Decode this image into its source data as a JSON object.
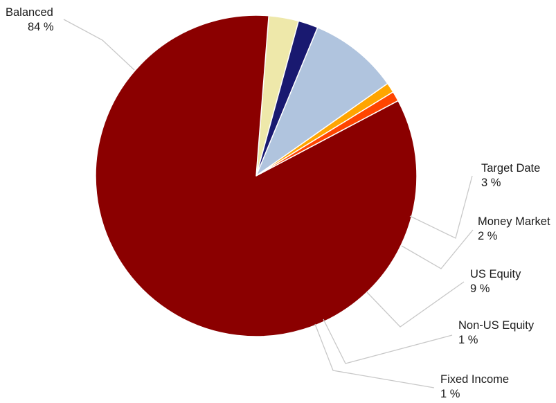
{
  "chart_data": {
    "type": "pie",
    "title": "",
    "start_angle_deg": 85.5,
    "direction": "clockwise",
    "slices": [
      {
        "name": "Target Date",
        "value": 3,
        "label": "Target Date",
        "value_label": "3 %",
        "color": "#EEE8AA"
      },
      {
        "name": "Money Market",
        "value": 2,
        "label": "Money Market",
        "value_label": "2 %",
        "color": "#191970"
      },
      {
        "name": "US Equity",
        "value": 9,
        "label": "US Equity",
        "value_label": "9 %",
        "color": "#B0C4DE"
      },
      {
        "name": "Non-US Equity",
        "value": 1,
        "label": "Non-US Equity",
        "value_label": "1 %",
        "color": "#FFA500"
      },
      {
        "name": "Fixed Income",
        "value": 1,
        "label": "Fixed Income",
        "value_label": "1 %",
        "color": "#FF4500"
      },
      {
        "name": "Balanced",
        "value": 84,
        "label": "Balanced",
        "value_label": "84 %",
        "color": "#8B0000"
      }
    ],
    "legend": "none",
    "labels": "outside-with-leader-lines"
  }
}
